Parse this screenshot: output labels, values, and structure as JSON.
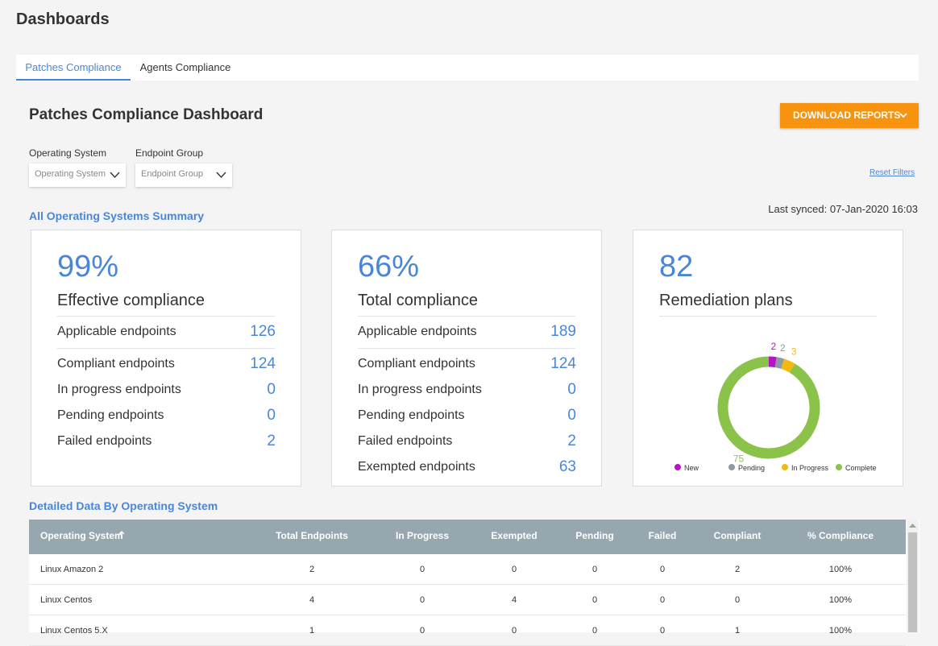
{
  "header": {
    "title": "Dashboards"
  },
  "tabs": [
    "Patches Compliance",
    "Agents Compliance"
  ],
  "dashboard": {
    "title": "Patches Compliance Dashboard",
    "download": "DOWNLOAD REPORTS"
  },
  "filters": [
    {
      "label": "Operating System",
      "placeholder": "Operating System"
    },
    {
      "label": "Endpoint Group",
      "placeholder": "Endpoint Group"
    }
  ],
  "reset": "Reset Filters",
  "summary_title": "All Operating Systems Summary",
  "last_synced": "Last synced: 07-Jan-2020 16:03",
  "cards": [
    {
      "value": "99%",
      "label": "Effective compliance",
      "rows": [
        [
          "Applicable endpoints",
          126
        ],
        [
          "Compliant endpoints",
          124
        ],
        [
          "In progress endpoints",
          0
        ],
        [
          "Pending endpoints",
          0
        ],
        [
          "Failed endpoints",
          2
        ]
      ]
    },
    {
      "value": "66%",
      "label": "Total compliance",
      "rows": [
        [
          "Applicable endpoints",
          189
        ],
        [
          "Compliant endpoints",
          124
        ],
        [
          "In progress endpoints",
          0
        ],
        [
          "Pending endpoints",
          0
        ],
        [
          "Failed endpoints",
          2
        ],
        [
          "Exempted endpoints",
          63
        ]
      ]
    }
  ],
  "remediation": {
    "value": 82,
    "label": "Remediation plans",
    "chart": {
      "type": "donut",
      "categories": [
        "New",
        "Pending",
        "In Progress",
        "Complete"
      ],
      "values": [
        2,
        2,
        3,
        75
      ],
      "colors": [
        "#b913c9",
        "#8c9aa3",
        "#f5b80f",
        "#8bc34a"
      ]
    }
  },
  "table": {
    "title": "Detailed Data By Operating System",
    "columns": [
      "Operating System",
      "Total Endpoints",
      "In Progress",
      "Exempted",
      "Pending",
      "Failed",
      "Compliant",
      "% Compliance"
    ],
    "rows": [
      [
        "Linux Amazon 2",
        2,
        0,
        0,
        0,
        0,
        2,
        "100%"
      ],
      [
        "Linux Centos",
        4,
        0,
        4,
        0,
        0,
        0,
        "100%"
      ],
      [
        "Linux Centos 5.X",
        1,
        0,
        0,
        0,
        0,
        1,
        "100%"
      ]
    ]
  }
}
